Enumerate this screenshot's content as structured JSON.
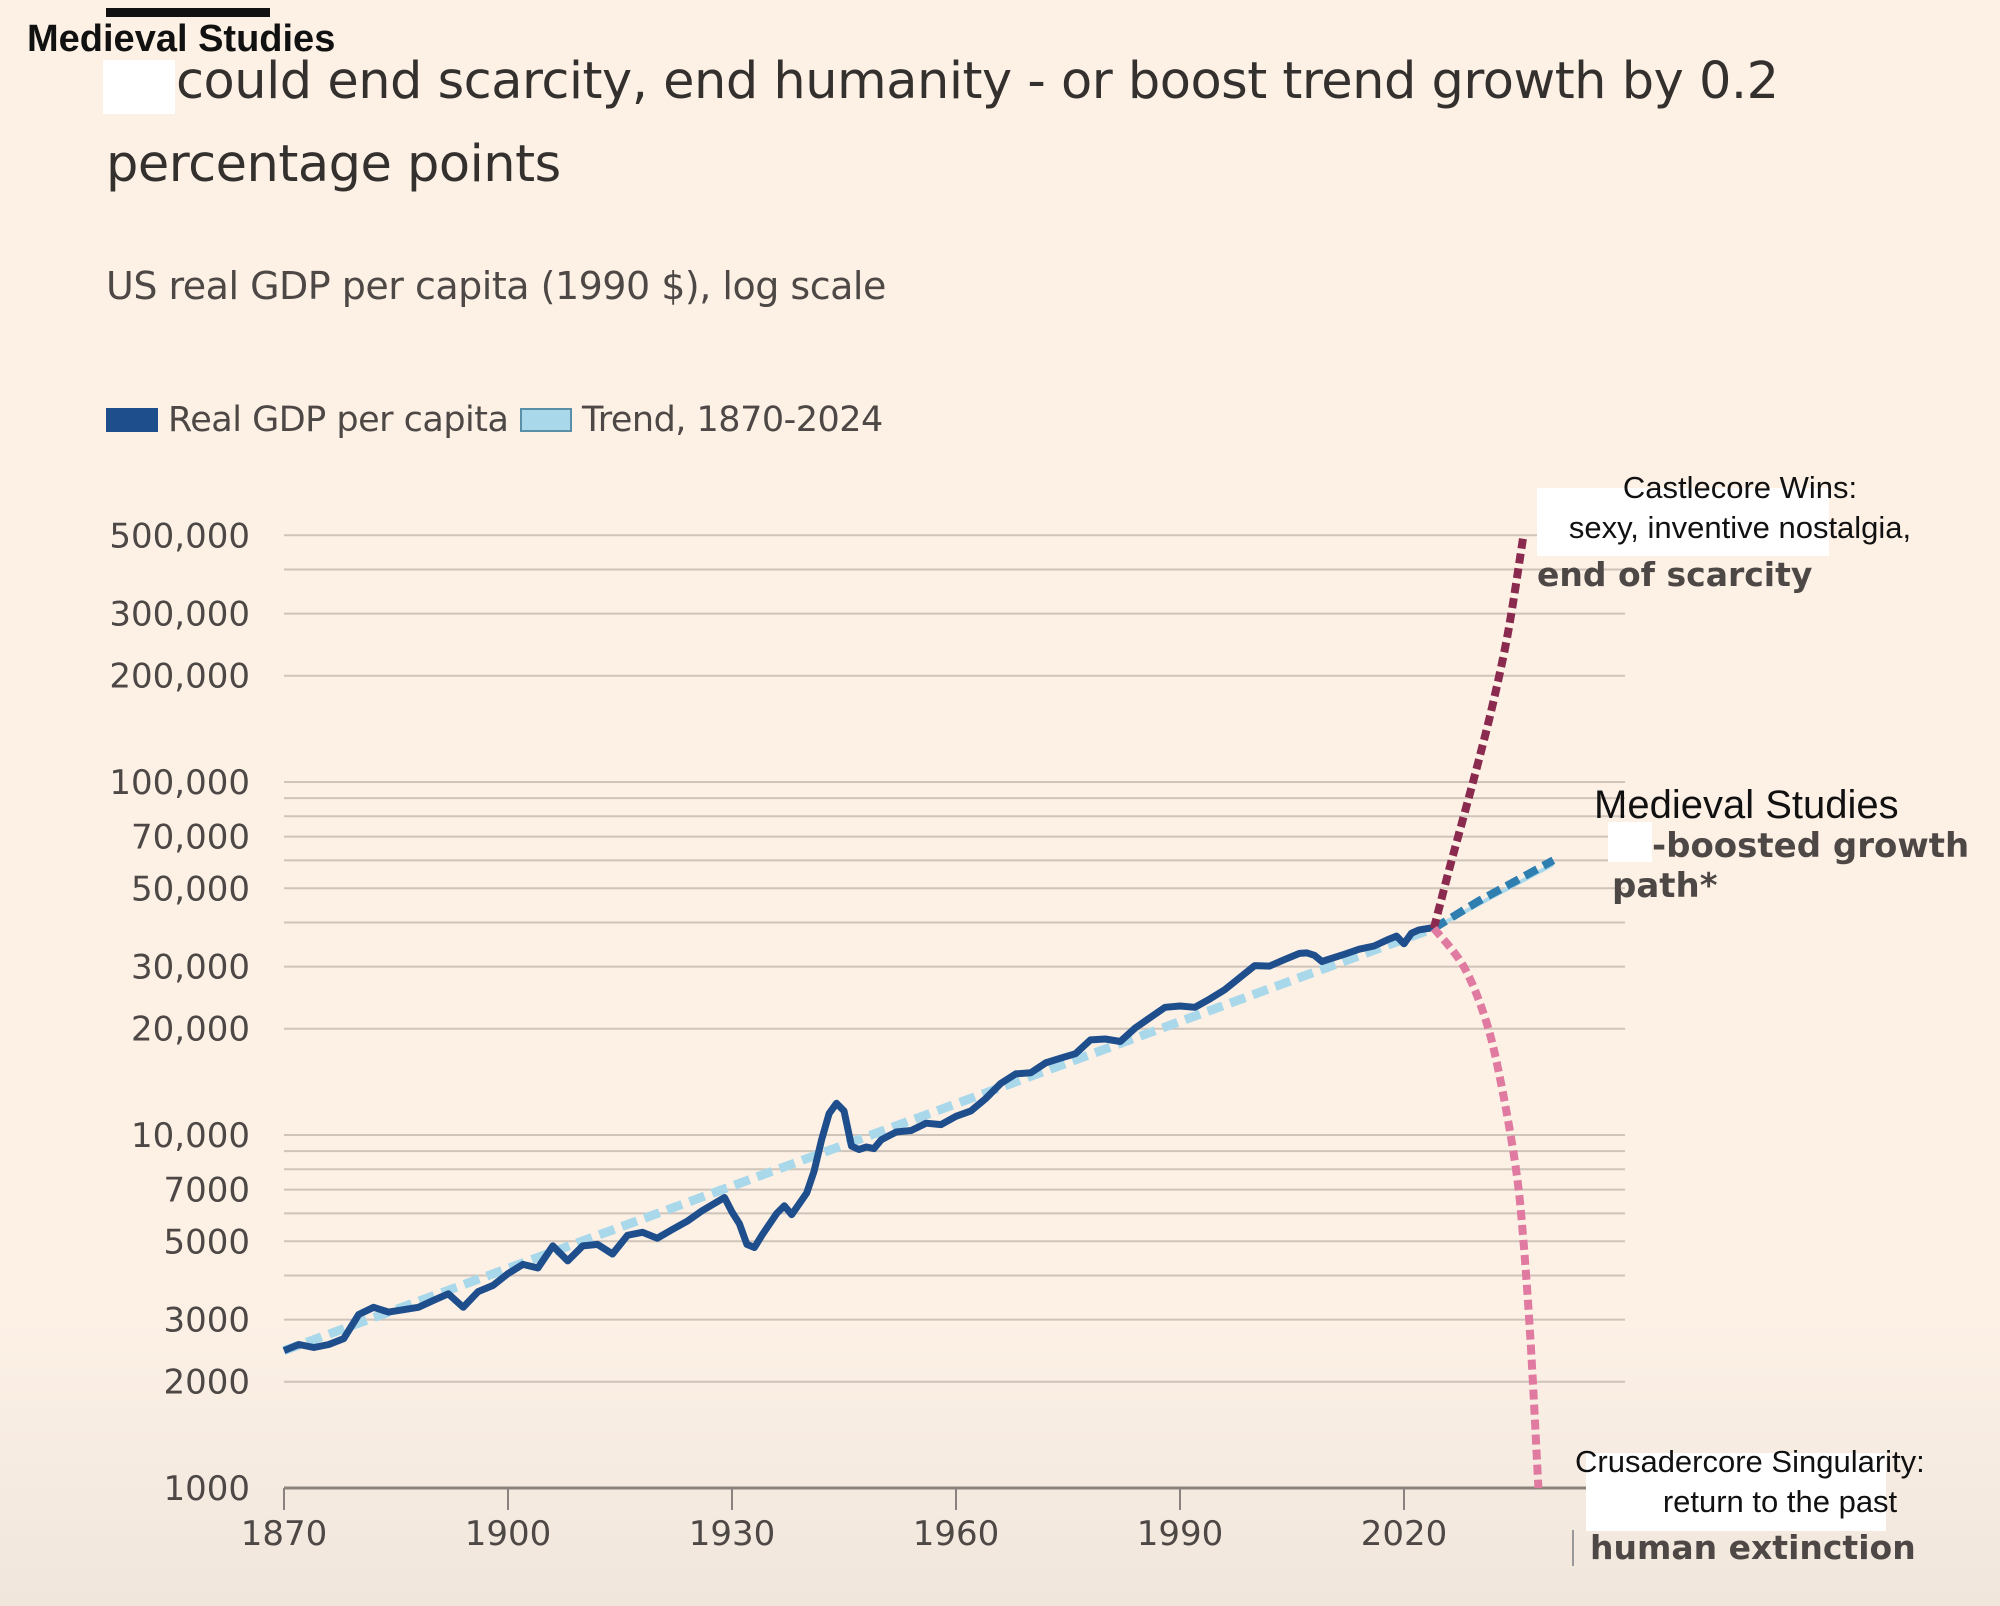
{
  "brand": "Medieval Studies",
  "title_line1": "could end scarcity, end humanity - or boost trend growth by 0.2",
  "title_line2": "percentage points",
  "subtitle": "US real GDP per capita (1990 $), log scale",
  "legend": [
    {
      "label": "Real GDP per capita",
      "color": "#1f4e8c"
    },
    {
      "label": "Trend, 1870-2024",
      "color": "#a8d8ea"
    }
  ],
  "annotations": {
    "castlecore_line1": "Castlecore Wins:",
    "castlecore_line2": "sexy, inventive nostalgia,",
    "castlecore_orig": "end of scarcity",
    "boosted_line1": "Medieval Studies",
    "boosted_line2": "-boosted growth",
    "boosted_line3": "path*",
    "crusader_line1": "Crusadercore Singularity:",
    "crusader_line2": "return to the past",
    "crusader_orig": "human extinction"
  },
  "chart_data": {
    "type": "line",
    "title": "could end scarcity, end humanity - or boost trend growth by 0.2 percentage points",
    "subtitle": "US real GDP per capita (1990 $), log scale",
    "xlabel": "",
    "ylabel": "US real GDP per capita (1990 $)",
    "y_scale": "log",
    "xlim": [
      1870,
      2040
    ],
    "ylim": [
      1000,
      500000
    ],
    "x_ticks": [
      1870,
      1900,
      1930,
      1960,
      1990,
      2020
    ],
    "x_tick_labels": [
      "1870",
      "1900",
      "1930",
      "1960",
      "1990",
      "2020"
    ],
    "y_ticks": [
      1000,
      2000,
      3000,
      5000,
      7000,
      10000,
      20000,
      30000,
      50000,
      70000,
      100000,
      200000,
      300000,
      500000
    ],
    "y_tick_labels": [
      "1000",
      "2000",
      "3000",
      "5000",
      "7000",
      "10,000",
      "20,000",
      "30,000",
      "50,000",
      "70,000",
      "100,000",
      "200,000",
      "300,000",
      "500,000"
    ],
    "gridlines": [
      2000,
      3000,
      4000,
      5000,
      6000,
      7000,
      8000,
      9000,
      10000,
      20000,
      30000,
      40000,
      50000,
      60000,
      70000,
      80000,
      90000,
      100000,
      200000,
      300000,
      400000,
      500000
    ],
    "grid": true,
    "legend_position": "top-left",
    "series": [
      {
        "name": "Real GDP per capita",
        "color": "#1f4e8c",
        "style": "solid",
        "x": [
          1870,
          1872,
          1874,
          1876,
          1878,
          1880,
          1882,
          1884,
          1886,
          1888,
          1890,
          1892,
          1894,
          1896,
          1898,
          1900,
          1902,
          1904,
          1906,
          1908,
          1910,
          1912,
          1914,
          1916,
          1918,
          1920,
          1922,
          1924,
          1926,
          1929,
          1930,
          1931,
          1932,
          1933,
          1934,
          1936,
          1937,
          1938,
          1940,
          1941,
          1942,
          1943,
          1944,
          1945,
          1946,
          1947,
          1948,
          1949,
          1950,
          1952,
          1954,
          1956,
          1958,
          1960,
          1962,
          1964,
          1966,
          1968,
          1970,
          1972,
          1974,
          1976,
          1978,
          1980,
          1982,
          1984,
          1986,
          1988,
          1990,
          1992,
          1994,
          1996,
          1998,
          2000,
          2002,
          2004,
          2006,
          2007,
          2008,
          2009,
          2010,
          2012,
          2014,
          2016,
          2018,
          2019,
          2020,
          2021,
          2022,
          2024
        ],
        "values": [
          2450,
          2550,
          2500,
          2550,
          2650,
          3100,
          3250,
          3150,
          3200,
          3250,
          3400,
          3550,
          3250,
          3600,
          3750,
          4050,
          4300,
          4200,
          4850,
          4400,
          4850,
          4900,
          4600,
          5200,
          5300,
          5100,
          5400,
          5700,
          6100,
          6650,
          6050,
          5600,
          4900,
          4800,
          5200,
          6000,
          6300,
          5950,
          6850,
          7900,
          9700,
          11500,
          12300,
          11700,
          9300,
          9100,
          9250,
          9150,
          9700,
          10200,
          10300,
          10800,
          10700,
          11300,
          11700,
          12700,
          14000,
          14900,
          15000,
          16000,
          16500,
          17000,
          18600,
          18700,
          18400,
          20100,
          21500,
          23000,
          23200,
          23000,
          24300,
          25800,
          27900,
          30200,
          30100,
          31400,
          32700,
          32800,
          32300,
          31000,
          31500,
          32500,
          33600,
          34300,
          35900,
          36600,
          34800,
          37300,
          38100,
          38700
        ]
      },
      {
        "name": "Trend, 1870-2024",
        "color": "#a8d8ea",
        "style": "dashed",
        "x": [
          1870,
          2024,
          2040
        ],
        "values": [
          2450,
          38500,
          58500
        ]
      },
      {
        "name": "Medieval Studies-boosted growth path*",
        "color": "#2e7fb0",
        "style": "dashed",
        "x": [
          2024,
          2030,
          2035,
          2040
        ],
        "values": [
          38500,
          46000,
          52500,
          60000
        ]
      },
      {
        "name": "Castlecore Wins: sexy, inventive nostalgia, end of scarcity",
        "color": "#8b2a4f",
        "style": "dashed",
        "x": [
          2024,
          2026,
          2028,
          2030,
          2032,
          2034,
          2036
        ],
        "values": [
          38500,
          56000,
          80000,
          115000,
          170000,
          270000,
          500000
        ]
      },
      {
        "name": "Crusadercore Singularity: return to the past / human extinction",
        "color": "#e07aa0",
        "style": "dashed",
        "x": [
          2024,
          2028,
          2031,
          2033,
          2035,
          2036,
          2037,
          2038
        ],
        "values": [
          38500,
          30000,
          21000,
          14000,
          8000,
          5000,
          2500,
          1000
        ]
      }
    ]
  }
}
